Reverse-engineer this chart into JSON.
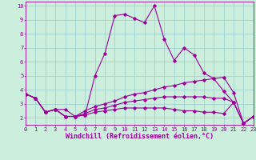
{
  "xlabel": "Windchill (Refroidissement éolien,°C)",
  "xlim": [
    0,
    23
  ],
  "ylim": [
    1.5,
    10.3
  ],
  "xticks": [
    0,
    1,
    2,
    3,
    4,
    5,
    6,
    7,
    8,
    9,
    10,
    11,
    12,
    13,
    14,
    15,
    16,
    17,
    18,
    19,
    20,
    21,
    22,
    23
  ],
  "yticks": [
    2,
    3,
    4,
    5,
    6,
    7,
    8,
    9,
    10
  ],
  "background_color": "#cceedd",
  "grid_color": "#99cccc",
  "line_color": "#990099",
  "lines": [
    {
      "x": [
        0,
        1,
        2,
        3,
        4,
        5,
        6,
        7,
        8,
        9,
        10,
        11,
        12,
        13,
        14,
        15,
        16,
        17,
        18,
        19,
        20,
        21,
        22,
        23
      ],
      "y": [
        3.7,
        3.4,
        2.4,
        2.6,
        2.6,
        2.1,
        2.2,
        5.0,
        6.6,
        9.3,
        9.4,
        9.1,
        8.8,
        10.0,
        7.6,
        6.1,
        7.0,
        6.5,
        5.2,
        4.8,
        3.9,
        3.1,
        1.6,
        2.1
      ]
    },
    {
      "x": [
        0,
        1,
        2,
        3,
        4,
        5,
        6,
        7,
        8,
        9,
        10,
        11,
        12,
        13,
        14,
        15,
        16,
        17,
        18,
        19,
        20,
        21,
        22,
        23
      ],
      "y": [
        3.7,
        3.4,
        2.4,
        2.6,
        2.1,
        2.1,
        2.5,
        2.8,
        3.0,
        3.2,
        3.5,
        3.7,
        3.8,
        4.0,
        4.2,
        4.3,
        4.5,
        4.6,
        4.7,
        4.8,
        4.9,
        3.8,
        1.6,
        2.1
      ]
    },
    {
      "x": [
        0,
        1,
        2,
        3,
        4,
        5,
        6,
        7,
        8,
        9,
        10,
        11,
        12,
        13,
        14,
        15,
        16,
        17,
        18,
        19,
        20,
        21,
        22,
        23
      ],
      "y": [
        3.7,
        3.4,
        2.4,
        2.6,
        2.1,
        2.1,
        2.3,
        2.6,
        2.7,
        2.9,
        3.1,
        3.2,
        3.3,
        3.4,
        3.5,
        3.5,
        3.5,
        3.5,
        3.5,
        3.4,
        3.4,
        3.1,
        1.6,
        2.1
      ]
    },
    {
      "x": [
        0,
        1,
        2,
        3,
        4,
        5,
        6,
        7,
        8,
        9,
        10,
        11,
        12,
        13,
        14,
        15,
        16,
        17,
        18,
        19,
        20,
        21,
        22,
        23
      ],
      "y": [
        3.7,
        3.4,
        2.4,
        2.6,
        2.1,
        2.1,
        2.2,
        2.4,
        2.5,
        2.6,
        2.7,
        2.7,
        2.7,
        2.7,
        2.7,
        2.6,
        2.5,
        2.5,
        2.4,
        2.4,
        2.3,
        3.1,
        1.6,
        2.1
      ]
    }
  ],
  "marker": "D",
  "markersize": 1.8,
  "linewidth": 0.8,
  "tick_fontsize": 5.0,
  "xlabel_fontsize": 6.0
}
